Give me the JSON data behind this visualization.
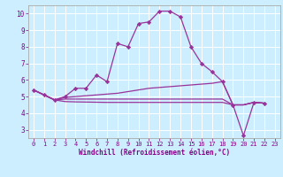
{
  "xlabel": "Windchill (Refroidissement éolien,°C)",
  "background_color": "#cceeff",
  "grid_color": "#ffffff",
  "line_color": "#993399",
  "marker": "D",
  "markersize": 2.2,
  "linewidth": 0.9,
  "xlim": [
    -0.5,
    23.5
  ],
  "ylim": [
    2.5,
    10.5
  ],
  "yticks": [
    3,
    4,
    5,
    6,
    7,
    8,
    9,
    10
  ],
  "xticks": [
    0,
    1,
    2,
    3,
    4,
    5,
    6,
    7,
    8,
    9,
    10,
    11,
    12,
    13,
    14,
    15,
    16,
    17,
    18,
    19,
    20,
    21,
    22,
    23
  ],
  "series": [
    [
      5.4,
      5.1,
      4.8,
      5.0,
      5.5,
      5.5,
      6.3,
      5.9,
      8.2,
      8.0,
      9.4,
      9.5,
      10.15,
      10.15,
      9.8,
      8.0,
      7.0,
      6.5,
      5.9,
      4.5,
      2.65,
      4.65,
      4.6,
      null
    ],
    [
      5.4,
      5.1,
      4.8,
      4.95,
      5.0,
      5.05,
      5.1,
      5.15,
      5.2,
      5.3,
      5.4,
      5.5,
      5.55,
      5.6,
      5.65,
      5.7,
      5.75,
      5.8,
      5.9,
      4.5,
      4.5,
      4.65,
      4.6,
      null
    ],
    [
      5.4,
      5.1,
      4.8,
      4.85,
      4.85,
      4.85,
      4.85,
      4.85,
      4.85,
      4.85,
      4.85,
      4.85,
      4.85,
      4.85,
      4.85,
      4.85,
      4.85,
      4.85,
      4.85,
      4.5,
      4.5,
      4.65,
      4.6,
      null
    ],
    [
      5.4,
      5.1,
      4.8,
      4.7,
      4.68,
      4.67,
      4.66,
      4.65,
      4.65,
      4.65,
      4.65,
      4.65,
      4.65,
      4.65,
      4.65,
      4.65,
      4.65,
      4.65,
      4.65,
      4.5,
      4.5,
      4.65,
      4.6,
      null
    ]
  ]
}
